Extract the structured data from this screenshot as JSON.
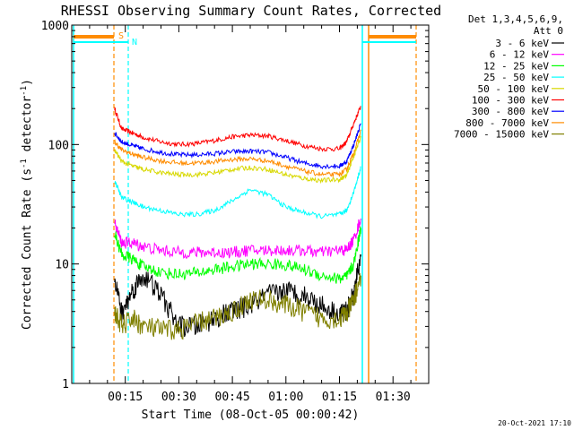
{
  "chart_data": {
    "type": "line",
    "title": "RHESSI Observing Summary Count Rates, Corrected",
    "xlabel": "Start Time (08-Oct-05 00:00:42)",
    "ylabel_parts": {
      "main": "Corrected Count Rate (s",
      "sup": "-1",
      "rest": " detector",
      "sup2": "-1",
      "close": ")"
    },
    "y_scale": "log",
    "ylim": [
      1,
      1000
    ],
    "xlim_minutes": [
      0,
      100
    ],
    "y_ticks": [
      {
        "value": 1,
        "label": "1"
      },
      {
        "value": 10,
        "label": "10"
      },
      {
        "value": 100,
        "label": "100"
      },
      {
        "value": 1000,
        "label": "1000"
      }
    ],
    "x_ticks": [
      {
        "value": 15,
        "label": "00:15"
      },
      {
        "value": 30,
        "label": "00:30"
      },
      {
        "value": 45,
        "label": "00:45"
      },
      {
        "value": 60,
        "label": "01:00"
      },
      {
        "value": 75,
        "label": "01:15"
      },
      {
        "value": 90,
        "label": "01:30"
      }
    ],
    "legend": {
      "placement": "right",
      "header1": "Det 1,3,4,5,6,9,",
      "header2": "Att 0",
      "entries": [
        {
          "label": "3 - 6 keV",
          "color": "#000000"
        },
        {
          "label": "6 - 12 keV",
          "color": "#ff00ff"
        },
        {
          "label": "12 - 25 keV",
          "color": "#00ff00"
        },
        {
          "label": "25 - 50 keV",
          "color": "#00ffff"
        },
        {
          "label": "50 - 100 keV",
          "color": "#d8d800"
        },
        {
          "label": "100 - 300 keV",
          "color": "#ff0000"
        },
        {
          "label": "300 - 800 keV",
          "color": "#0000ff"
        },
        {
          "label": "800 - 7000 keV",
          "color": "#ff8c00"
        },
        {
          "label": "7000 - 15000 keV",
          "color": "#808000"
        }
      ]
    },
    "annotations": [
      {
        "label": "S",
        "color": "#ff8c00"
      },
      {
        "label": "N",
        "color": "#00ffff"
      }
    ],
    "x": [
      12,
      14,
      17,
      20,
      25,
      30,
      35,
      40,
      45,
      50,
      55,
      60,
      65,
      70,
      75,
      77,
      79,
      81
    ],
    "series": [
      {
        "color": "#ff0000",
        "values": [
          200,
          135,
          125,
          115,
          105,
          100,
          102,
          108,
          116,
          120,
          118,
          108,
          98,
          92,
          92,
          105,
          150,
          210
        ]
      },
      {
        "color": "#0000ff",
        "values": [
          125,
          105,
          98,
          92,
          86,
          82,
          82,
          84,
          87,
          88,
          86,
          78,
          70,
          66,
          66,
          72,
          100,
          150
        ]
      },
      {
        "color": "#ff8c00",
        "values": [
          105,
          90,
          83,
          78,
          73,
          70,
          70,
          72,
          75,
          76,
          73,
          66,
          60,
          56,
          56,
          62,
          85,
          130
        ]
      },
      {
        "color": "#d8d800",
        "values": [
          90,
          72,
          66,
          62,
          58,
          56,
          56,
          58,
          62,
          64,
          62,
          56,
          52,
          50,
          51,
          55,
          80,
          115
        ]
      },
      {
        "color": "#00ffff",
        "values": [
          50,
          36,
          33,
          30,
          28,
          26,
          26,
          28,
          34,
          42,
          38,
          30,
          27,
          25,
          26,
          28,
          40,
          65
        ]
      },
      {
        "color": "#ff00ff",
        "values": [
          22,
          15,
          15,
          14,
          13,
          12.5,
          12.5,
          12.5,
          12.5,
          13,
          13,
          13,
          13,
          12.5,
          13,
          13,
          16,
          24
        ]
      },
      {
        "color": "#00ff00",
        "values": [
          18,
          12,
          11,
          9.5,
          8.5,
          8.2,
          8.4,
          9,
          9.5,
          10,
          10,
          9.8,
          9,
          8,
          7.5,
          7.8,
          10,
          20
        ]
      },
      {
        "color": "#000000",
        "values": [
          8,
          3.8,
          6,
          8,
          5.5,
          3,
          3,
          3.5,
          4,
          4.5,
          5.5,
          6,
          5.5,
          4.5,
          3.8,
          4,
          5.5,
          12
        ]
      },
      {
        "color": "#808000",
        "values": [
          4,
          3,
          3.5,
          3,
          2.8,
          2.8,
          3.2,
          3.5,
          4,
          5,
          5,
          4.5,
          4,
          3.5,
          3.5,
          3.8,
          5,
          8
        ]
      }
    ]
  },
  "footer": {
    "date_stamp": "20-Oct-2021 17:10"
  }
}
